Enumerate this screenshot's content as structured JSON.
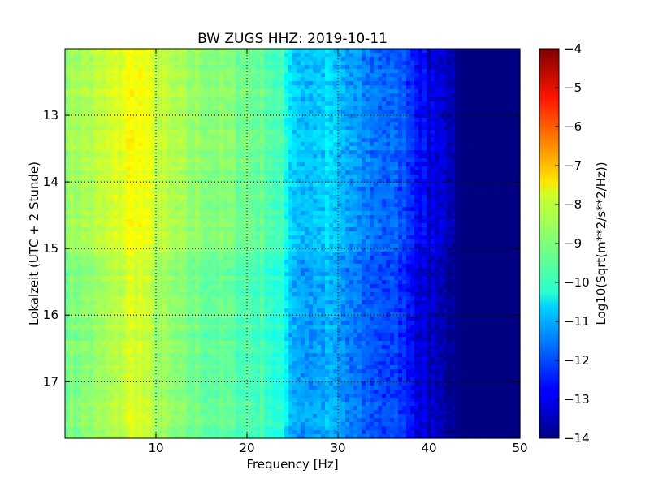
{
  "chart_data": {
    "type": "heatmap",
    "title": "BW ZUGS HHZ: 2019-10-11",
    "xlabel": "Frequency [Hz]",
    "ylabel": "Lokalzeit (UTC + 2 Stunde)",
    "xlim": [
      0,
      50
    ],
    "ylim": [
      12.0,
      17.85
    ],
    "y_inverted": true,
    "x_ticks": [
      10,
      20,
      30,
      40,
      50
    ],
    "y_ticks": [
      13,
      14,
      15,
      16,
      17
    ],
    "grid": true,
    "colormap": "jet",
    "colorbar": {
      "label": "Log10(Sqrt(m**2/s**2/Hz))",
      "range": [
        -14,
        -4
      ],
      "ticks": [
        -4,
        -5,
        -6,
        -7,
        -8,
        -9,
        -10,
        -11,
        -12,
        -13,
        -14
      ],
      "position": "right"
    },
    "frequency_profile": {
      "frequency_hz": [
        0,
        2,
        4,
        6,
        7,
        8,
        9,
        10,
        12,
        14,
        16,
        18,
        20,
        21,
        22,
        23,
        24,
        25,
        26,
        28,
        29,
        30,
        31,
        33,
        35,
        37,
        38,
        39,
        40,
        41,
        42,
        43,
        44,
        50
      ],
      "level": [
        -8.9,
        -8.8,
        -8.6,
        -8.3,
        -8.0,
        -8.0,
        -8.2,
        -8.5,
        -8.8,
        -9.0,
        -9.1,
        -9.2,
        -9.3,
        -9.4,
        -9.5,
        -9.7,
        -9.9,
        -10.7,
        -10.9,
        -10.9,
        -10.7,
        -11.0,
        -11.2,
        -11.6,
        -11.8,
        -12.0,
        -12.3,
        -12.8,
        -13.0,
        -13.1,
        -13.4,
        -13.9,
        -14.0,
        -14.0
      ]
    },
    "time_variation": {
      "hours": [
        12.0,
        13.0,
        14.0,
        15.0,
        15.2,
        16.0,
        17.0,
        17.85
      ],
      "offset": [
        0.15,
        0.25,
        0.2,
        0.2,
        -0.15,
        -0.15,
        -0.15,
        -0.15
      ]
    }
  },
  "colors": {
    "axes_edge": "#000000",
    "grid": "#000000",
    "background": "#ffffff"
  }
}
